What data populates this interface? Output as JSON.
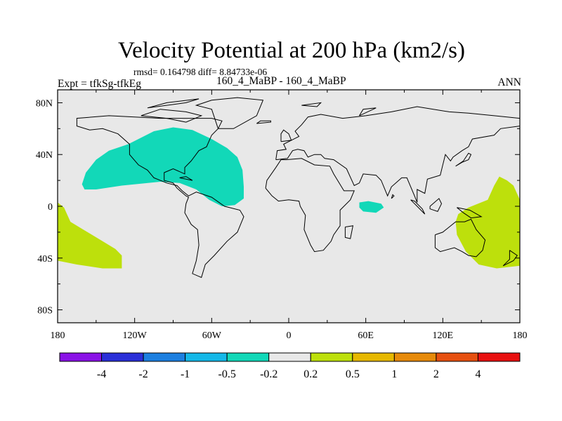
{
  "chart_data": {
    "type": "heatmap",
    "title": "Velocity Potential at 200 hPa (km2/s)",
    "stats_line": "rmsd= 0.164798 diff= 8.84733e-06",
    "left_label": "Expt = tfkSg-tfkEg",
    "center_label": "160_4_MaBP - 160_4_MaBP",
    "right_label": "ANN",
    "x_range": [
      -180,
      180
    ],
    "y_range": [
      -90,
      90
    ],
    "x_ticks": [
      {
        "value": -180,
        "label": "180"
      },
      {
        "value": -120,
        "label": "120W"
      },
      {
        "value": -60,
        "label": "60W"
      },
      {
        "value": 0,
        "label": "0"
      },
      {
        "value": 60,
        "label": "60E"
      },
      {
        "value": 120,
        "label": "120E"
      },
      {
        "value": 180,
        "label": "180"
      }
    ],
    "y_ticks": [
      {
        "value": 80,
        "label": "80N"
      },
      {
        "value": 40,
        "label": "40N"
      },
      {
        "value": 0,
        "label": "0"
      },
      {
        "value": -40,
        "label": "40S"
      },
      {
        "value": -80,
        "label": "80S"
      }
    ],
    "background_color": "#e8e8e8",
    "colorbar": {
      "colors": [
        "#8a12e6",
        "#2a2fd8",
        "#1c7fe0",
        "#14b8e8",
        "#12d8b8",
        "#e8e8e8",
        "#bde00c",
        "#e6b800",
        "#e68a0a",
        "#e65010",
        "#e81010"
      ],
      "labels": [
        "-4",
        "-2",
        "-1",
        "-0.5",
        "-0.2",
        "0.2",
        "0.5",
        "1",
        "2",
        "4"
      ]
    },
    "regions": [
      {
        "name": "negative-anomaly-north-atlantic-pacific",
        "range": "-0.5 to -0.2",
        "color": "#12d8b8",
        "polygon": [
          [
            -161,
            17
          ],
          [
            -158,
            26
          ],
          [
            -150,
            36
          ],
          [
            -140,
            43
          ],
          [
            -125,
            48
          ],
          [
            -105,
            58
          ],
          [
            -90,
            61
          ],
          [
            -75,
            59
          ],
          [
            -60,
            52
          ],
          [
            -48,
            45
          ],
          [
            -40,
            38
          ],
          [
            -36,
            28
          ],
          [
            -35,
            15
          ],
          [
            -35,
            6
          ],
          [
            -42,
            1
          ],
          [
            -52,
            0
          ],
          [
            -62,
            5
          ],
          [
            -72,
            13
          ],
          [
            -85,
            18
          ],
          [
            -100,
            19
          ],
          [
            -130,
            16
          ],
          [
            -150,
            13
          ],
          [
            -159,
            13
          ]
        ]
      },
      {
        "name": "negative-anomaly-arabian-sea",
        "range": "-0.5 to -0.2",
        "color": "#12d8b8",
        "polygon": [
          [
            55,
            3
          ],
          [
            62,
            4
          ],
          [
            72,
            2
          ],
          [
            74,
            -1
          ],
          [
            68,
            -5
          ],
          [
            58,
            -4
          ],
          [
            55,
            -1
          ]
        ]
      },
      {
        "name": "positive-anomaly-south-pacific-west",
        "range": "0.2 to 0.5",
        "color": "#bde00c",
        "polygon": [
          [
            -180,
            3
          ],
          [
            -175,
            -1
          ],
          [
            -170,
            -12
          ],
          [
            -160,
            -18
          ],
          [
            -145,
            -27
          ],
          [
            -135,
            -33
          ],
          [
            -130,
            -38
          ],
          [
            -130,
            -48
          ],
          [
            -145,
            -48
          ],
          [
            -165,
            -45
          ],
          [
            -180,
            -42
          ]
        ]
      },
      {
        "name": "positive-anomaly-south-pacific-east",
        "range": "0.2 to 0.5",
        "color": "#bde00c",
        "polygon": [
          [
            180,
            5
          ],
          [
            175,
            16
          ],
          [
            170,
            20
          ],
          [
            164,
            23
          ],
          [
            160,
            16
          ],
          [
            155,
            5
          ],
          [
            140,
            -1
          ],
          [
            132,
            -6
          ],
          [
            130,
            -12
          ],
          [
            131,
            -22
          ],
          [
            138,
            -35
          ],
          [
            148,
            -45
          ],
          [
            162,
            -48
          ],
          [
            180,
            -46
          ]
        ]
      }
    ],
    "coastlines": [
      [
        [
          -100,
          68
        ],
        [
          -60,
          68
        ],
        [
          -52,
          66
        ],
        [
          -55,
          60
        ],
        [
          -60,
          55
        ],
        [
          -64,
          46
        ],
        [
          -70,
          43
        ],
        [
          -76,
          35
        ],
        [
          -81,
          30
        ],
        [
          -81,
          25
        ],
        [
          -90,
          29
        ],
        [
          -97,
          26
        ],
        [
          -97,
          20
        ],
        [
          -90,
          18
        ],
        [
          -87,
          14
        ],
        [
          -80,
          8
        ],
        [
          -78,
          7
        ],
        [
          -80,
          2
        ],
        [
          -81,
          -5
        ],
        [
          -76,
          -14
        ],
        [
          -71,
          -18
        ],
        [
          -70,
          -30
        ],
        [
          -72,
          -42
        ],
        [
          -75,
          -52
        ],
        [
          -68,
          -55
        ],
        [
          -65,
          -45
        ],
        [
          -58,
          -38
        ],
        [
          -48,
          -27
        ],
        [
          -40,
          -20
        ],
        [
          -35,
          -8
        ],
        [
          -38,
          -3
        ],
        [
          -50,
          0
        ],
        [
          -60,
          7
        ],
        [
          -72,
          11
        ],
        [
          -78,
          8
        ],
        [
          -83,
          12
        ],
        [
          -87,
          16
        ],
        [
          -95,
          18
        ],
        [
          -105,
          22
        ],
        [
          -110,
          28
        ],
        [
          -117,
          32
        ],
        [
          -124,
          40
        ],
        [
          -124,
          48
        ],
        [
          -133,
          56
        ],
        [
          -145,
          60
        ],
        [
          -155,
          59
        ],
        [
          -165,
          62
        ],
        [
          -165,
          68
        ],
        [
          -140,
          70
        ],
        [
          -100,
          68
        ]
      ],
      [
        [
          -55,
          60
        ],
        [
          -43,
          60
        ],
        [
          -25,
          70
        ],
        [
          -20,
          82
        ],
        [
          -40,
          84
        ],
        [
          -60,
          82
        ],
        [
          -72,
          78
        ],
        [
          -60,
          75
        ],
        [
          -55,
          60
        ]
      ],
      [
        [
          -18,
          14
        ],
        [
          -17,
          20
        ],
        [
          -10,
          30
        ],
        [
          -6,
          36
        ],
        [
          -2,
          36
        ],
        [
          10,
          37
        ],
        [
          20,
          32
        ],
        [
          32,
          31
        ],
        [
          35,
          25
        ],
        [
          43,
          12
        ],
        [
          51,
          12
        ],
        [
          48,
          5
        ],
        [
          40,
          -3
        ],
        [
          40,
          -15
        ],
        [
          35,
          -22
        ],
        [
          33,
          -27
        ],
        [
          27,
          -34
        ],
        [
          20,
          -35
        ],
        [
          17,
          -30
        ],
        [
          12,
          -18
        ],
        [
          13,
          -7
        ],
        [
          9,
          0
        ],
        [
          8,
          4
        ],
        [
          0,
          5
        ],
        [
          -8,
          4
        ],
        [
          -13,
          8
        ],
        [
          -18,
          14
        ]
      ],
      [
        [
          -10,
          36
        ],
        [
          -9,
          43
        ],
        [
          -2,
          44
        ],
        [
          -4,
          48
        ],
        [
          2,
          51
        ],
        [
          8,
          54
        ],
        [
          5,
          58
        ],
        [
          10,
          63
        ],
        [
          15,
          69
        ],
        [
          25,
          71
        ],
        [
          42,
          68
        ],
        [
          60,
          70
        ],
        [
          80,
          73
        ],
        [
          100,
          77
        ],
        [
          125,
          73
        ],
        [
          140,
          72
        ],
        [
          160,
          70
        ],
        [
          180,
          68
        ],
        [
          180,
          62
        ],
        [
          165,
          60
        ],
        [
          160,
          55
        ],
        [
          143,
          52
        ],
        [
          140,
          46
        ],
        [
          135,
          43
        ],
        [
          128,
          38
        ],
        [
          126,
          35
        ],
        [
          122,
          40
        ],
        [
          120,
          32
        ],
        [
          118,
          24
        ],
        [
          108,
          21
        ],
        [
          106,
          10
        ],
        [
          100,
          13
        ],
        [
          100,
          3
        ],
        [
          98,
          8
        ],
        [
          92,
          22
        ],
        [
          88,
          22
        ],
        [
          80,
          15
        ],
        [
          77,
          8
        ],
        [
          72,
          20
        ],
        [
          68,
          24
        ],
        [
          58,
          25
        ],
        [
          55,
          18
        ],
        [
          51,
          16
        ],
        [
          45,
          29
        ],
        [
          35,
          36
        ],
        [
          28,
          37
        ],
        [
          25,
          40
        ],
        [
          20,
          40
        ],
        [
          15,
          38
        ],
        [
          12,
          43
        ],
        [
          7,
          44
        ],
        [
          3,
          43
        ],
        [
          -1,
          37
        ],
        [
          -10,
          36
        ]
      ],
      [
        [
          114,
          -22
        ],
        [
          120,
          -20
        ],
        [
          130,
          -12
        ],
        [
          137,
          -12
        ],
        [
          142,
          -10
        ],
        [
          146,
          -18
        ],
        [
          153,
          -26
        ],
        [
          151,
          -34
        ],
        [
          146,
          -39
        ],
        [
          140,
          -38
        ],
        [
          135,
          -35
        ],
        [
          129,
          -32
        ],
        [
          118,
          -35
        ],
        [
          114,
          -32
        ],
        [
          114,
          -22
        ]
      ],
      [
        [
          -6,
          50
        ],
        [
          2,
          51
        ],
        [
          0,
          56
        ],
        [
          -4,
          59
        ],
        [
          -6,
          56
        ],
        [
          -6,
          50
        ]
      ],
      [
        [
          130,
          31
        ],
        [
          135,
          34
        ],
        [
          140,
          36
        ],
        [
          142,
          40
        ],
        [
          140,
          41
        ],
        [
          136,
          35
        ],
        [
          130,
          31
        ]
      ],
      [
        [
          95,
          5
        ],
        [
          100,
          0
        ],
        [
          106,
          -6
        ],
        [
          104,
          -2
        ],
        [
          98,
          4
        ],
        [
          95,
          5
        ]
      ],
      [
        [
          110,
          0
        ],
        [
          117,
          6
        ],
        [
          119,
          2
        ],
        [
          116,
          -4
        ],
        [
          110,
          -2
        ],
        [
          110,
          0
        ]
      ],
      [
        [
          131,
          -1
        ],
        [
          141,
          -3
        ],
        [
          150,
          -8
        ],
        [
          142,
          -9
        ],
        [
          136,
          -5
        ],
        [
          131,
          -1
        ]
      ],
      [
        [
          -25,
          64
        ],
        [
          -14,
          65
        ],
        [
          -14,
          66
        ],
        [
          -22,
          66
        ],
        [
          -25,
          64
        ]
      ],
      [
        [
          80,
          6
        ],
        [
          82,
          8
        ],
        [
          81,
          9
        ],
        [
          80,
          6
        ]
      ],
      [
        [
          44,
          -16
        ],
        [
          50,
          -15
        ],
        [
          48,
          -25
        ],
        [
          44,
          -24
        ],
        [
          44,
          -16
        ]
      ],
      [
        [
          -85,
          22
        ],
        [
          -75,
          20
        ],
        [
          -80,
          23
        ],
        [
          -85,
          22
        ]
      ],
      [
        [
          172,
          -34
        ],
        [
          178,
          -38
        ],
        [
          175,
          -42
        ],
        [
          167,
          -46
        ],
        [
          172,
          -41
        ],
        [
          172,
          -34
        ]
      ],
      [
        [
          -115,
          70
        ],
        [
          -100,
          75
        ],
        [
          -80,
          73
        ],
        [
          -68,
          70
        ],
        [
          -80,
          65
        ],
        [
          -95,
          68
        ],
        [
          -115,
          70
        ]
      ],
      [
        [
          -110,
          76
        ],
        [
          -80,
          80
        ],
        [
          -70,
          83
        ],
        [
          -95,
          80
        ],
        [
          -110,
          76
        ]
      ],
      [
        [
          10,
          78
        ],
        [
          25,
          80
        ],
        [
          22,
          77
        ],
        [
          10,
          78
        ]
      ],
      [
        [
          55,
          70
        ],
        [
          68,
          76
        ],
        [
          58,
          75
        ],
        [
          55,
          70
        ]
      ]
    ]
  }
}
